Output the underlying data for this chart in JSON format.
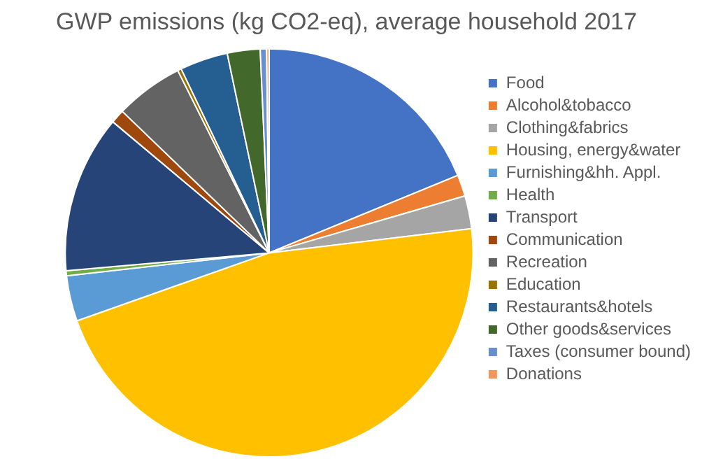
{
  "chart_data": {
    "type": "pie",
    "title": "GWP emissions (kg CO2-eq), average household 2017",
    "categories": [
      "Food",
      "Alcohol&tobacco",
      "Clothing&fabrics",
      "Housing, energy&water",
      "Furnishing&hh. Appl.",
      "Health",
      "Transport",
      "Communication",
      "Recreation",
      "Education",
      "Restaurants&hotels",
      "Other goods&services",
      "Taxes (consumer bound)",
      "Donations"
    ],
    "values": [
      18.8,
      1.7,
      2.6,
      46.5,
      3.6,
      0.4,
      12.5,
      1.1,
      5.4,
      0.3,
      3.8,
      2.6,
      0.5,
      0.2
    ],
    "colors": [
      "#4472c4",
      "#ed7d31",
      "#a5a5a5",
      "#ffc000",
      "#5b9bd5",
      "#70ad47",
      "#264478",
      "#9e480e",
      "#636363",
      "#997300",
      "#255e91",
      "#43682b",
      "#698ed0",
      "#f1975a"
    ],
    "legend": "right"
  }
}
